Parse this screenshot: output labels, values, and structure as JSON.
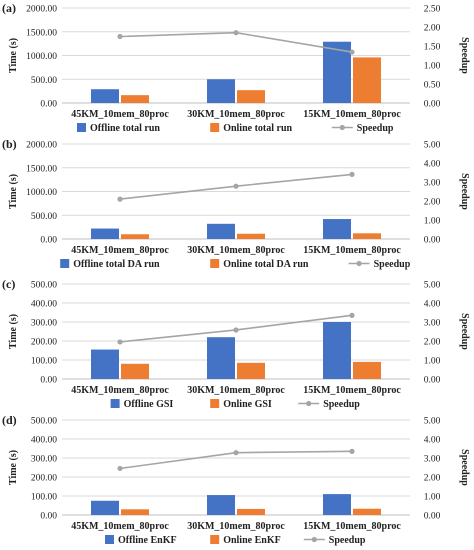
{
  "colors": {
    "offline": "#4472C4",
    "online": "#ED7D31",
    "speedup": "#A5A5A5",
    "grid": "#D9D9D9",
    "axis": "#BFBFBF"
  },
  "chart_data": [
    {
      "type": "bar",
      "panel_label": "(a)",
      "ylabel": "Time (s)",
      "y2label": "Speedup",
      "categories": [
        "45KM_10mem_80proc",
        "30KM_10mem_80proc",
        "15KM_10mem_80proc"
      ],
      "ylim": [
        0,
        2000
      ],
      "y_ticks": [
        "0.00",
        "500.00",
        "1000.00",
        "1500.00",
        "2000.00"
      ],
      "y2lim": [
        0,
        2.5
      ],
      "y2_ticks": [
        "0.00",
        "0.50",
        "1.00",
        "1.50",
        "2.00",
        "2.50"
      ],
      "grid": true,
      "legend_position": "bottom",
      "series": [
        {
          "name": "Offline total run",
          "kind": "bar",
          "axis": "left",
          "values": [
            290,
            500,
            1290
          ]
        },
        {
          "name": "Online total run",
          "kind": "bar",
          "axis": "left",
          "values": [
            165,
            270,
            960
          ]
        },
        {
          "name": "Speedup",
          "kind": "line",
          "axis": "right",
          "values": [
            1.75,
            1.85,
            1.34
          ]
        }
      ]
    },
    {
      "type": "bar",
      "panel_label": "(b)",
      "ylabel": "Time (s)",
      "y2label": "Speedup",
      "categories": [
        "45KM_10mem_80proc",
        "30KM_10mem_80proc",
        "15KM_10mem_80proc"
      ],
      "ylim": [
        0,
        2000
      ],
      "y_ticks": [
        "0.00",
        "500.00",
        "1000.00",
        "1500.00",
        "2000.00"
      ],
      "y2lim": [
        0,
        5
      ],
      "y2_ticks": [
        "0.00",
        "1.00",
        "2.00",
        "3.00",
        "4.00",
        "5.00"
      ],
      "grid": true,
      "legend_position": "bottom",
      "series": [
        {
          "name": "Offline total DA run",
          "kind": "bar",
          "axis": "left",
          "values": [
            220,
            320,
            420
          ]
        },
        {
          "name": "Online total DA run",
          "kind": "bar",
          "axis": "left",
          "values": [
            100,
            110,
            120
          ]
        },
        {
          "name": "Speedup",
          "kind": "line",
          "axis": "right",
          "values": [
            2.1,
            2.78,
            3.4
          ]
        }
      ]
    },
    {
      "type": "bar",
      "panel_label": "(c)",
      "ylabel": "Time (s)",
      "y2label": "Speedup",
      "categories": [
        "45KM_10mem_80proc",
        "30KM_10mem_80proc",
        "15KM_10mem_80proc"
      ],
      "ylim": [
        0,
        500
      ],
      "y_ticks": [
        "0.00",
        "100.00",
        "200.00",
        "300.00",
        "400.00",
        "500.00"
      ],
      "y2lim": [
        0,
        5
      ],
      "y2_ticks": [
        "0.00",
        "1.00",
        "2.00",
        "3.00",
        "4.00",
        "5.00"
      ],
      "grid": true,
      "legend_position": "bottom",
      "series": [
        {
          "name": "Offline GSI",
          "kind": "bar",
          "axis": "left",
          "values": [
            155,
            220,
            300
          ]
        },
        {
          "name": "Online GSI",
          "kind": "bar",
          "axis": "left",
          "values": [
            80,
            85,
            90
          ]
        },
        {
          "name": "Speedup",
          "kind": "line",
          "axis": "right",
          "values": [
            1.95,
            2.58,
            3.35
          ]
        }
      ]
    },
    {
      "type": "bar",
      "panel_label": "(d)",
      "ylabel": "Time (s)",
      "y2label": "Speedup",
      "categories": [
        "45KM_10mem_80proc",
        "30KM_10mem_80proc",
        "15KM_10mem_80proc"
      ],
      "ylim": [
        0,
        500
      ],
      "y_ticks": [
        "0.00",
        "100.00",
        "200.00",
        "300.00",
        "400.00",
        "500.00"
      ],
      "y2lim": [
        0,
        5
      ],
      "y2_ticks": [
        "0.00",
        "1.00",
        "2.00",
        "3.00",
        "4.00",
        "5.00"
      ],
      "grid": true,
      "legend_position": "bottom",
      "series": [
        {
          "name": "Offline EnKF",
          "kind": "bar",
          "axis": "left",
          "values": [
            75,
            105,
            110
          ]
        },
        {
          "name": "Online EnKF",
          "kind": "bar",
          "axis": "left",
          "values": [
            30,
            32,
            33
          ]
        },
        {
          "name": "Speedup",
          "kind": "line",
          "axis": "right",
          "values": [
            2.45,
            3.28,
            3.35
          ]
        }
      ]
    }
  ]
}
